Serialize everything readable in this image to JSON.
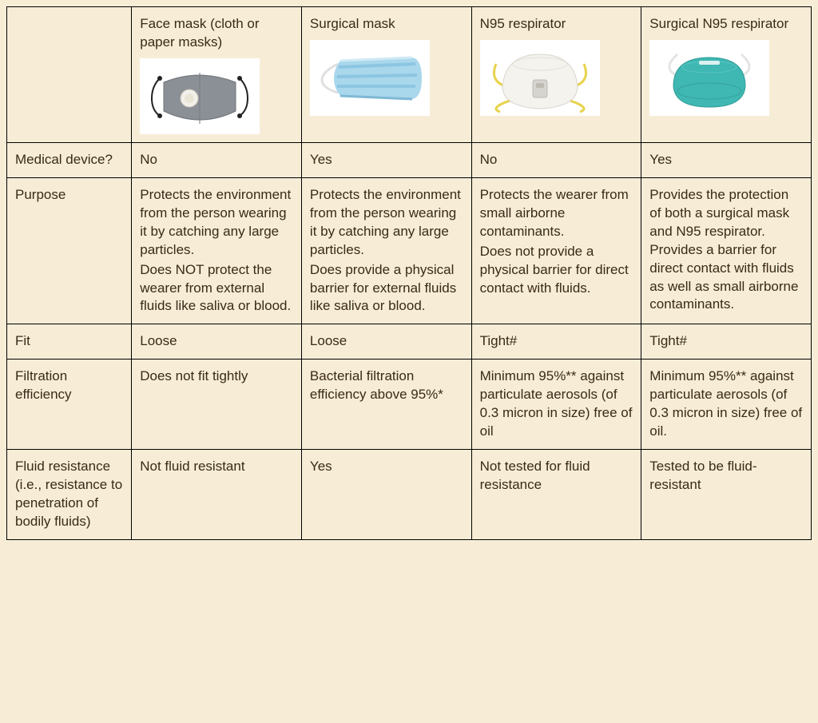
{
  "colors": {
    "page_bg": "#f7edd7",
    "border": "#000000",
    "text": "#3a2a17",
    "img_bg": "#ffffff"
  },
  "table": {
    "columns": [
      {
        "title": "Face mask (cloth or paper masks)",
        "icon": "face-mask"
      },
      {
        "title": "Surgical mask",
        "icon": "surgical-mask"
      },
      {
        "title": "N95 respirator",
        "icon": "n95"
      },
      {
        "title": "Surgical N95 respirator",
        "icon": "surgical-n95"
      }
    ],
    "rows": [
      {
        "label": "Medical device?",
        "cells": [
          "No",
          "Yes",
          "No",
          "Yes"
        ]
      },
      {
        "label": "Purpose",
        "cells": [
          "Protects the environment from the person wearing it by catching any large particles.\nDoes NOT protect the wearer from external fluids like saliva or blood.",
          "Protects the environment from the person wearing it by catching any large particles.\nDoes provide a physical barrier for external fluids like saliva or blood.",
          "Protects the wearer from small airborne contaminants.\nDoes not provide a physical barrier for direct contact with fluids.",
          "Provides the protection of both a surgical mask and N95 respirator. Provides a barrier for direct contact with fluids as well as small airborne contaminants."
        ]
      },
      {
        "label": "Fit",
        "cells": [
          "Loose",
          "Loose",
          "Tight#",
          "Tight#"
        ]
      },
      {
        "label": "Filtration efficiency",
        "cells": [
          "Does not fit tightly",
          "Bacterial filtration efficiency above 95%*",
          "Minimum 95%** against particulate aerosols (of 0.3 micron in size) free of oil",
          "Minimum 95%** against particulate aerosols (of 0.3 micron in size) free of oil."
        ]
      },
      {
        "label": "Fluid resistance (i.e., resistance to penetration of bodily fluids)",
        "cells": [
          "Not fluid resistant",
          "Yes",
          "Not tested for fluid resistance",
          "Tested to be fluid-resistant"
        ]
      }
    ]
  },
  "mask_styles": {
    "face-mask": {
      "body": "#8b8f96",
      "strap": "#222222",
      "valve": "#f2f0ea"
    },
    "surgical-mask": {
      "body": "#a9d7ec",
      "fold": "#8cc6e2",
      "strap": "#e8e8e8"
    },
    "n95": {
      "body": "#f5f3ee",
      "strap": "#e8d24a",
      "valve": "#d6d4cf"
    },
    "surgical-n95": {
      "body": "#3fb7b3",
      "strap": "#e8e8e8"
    }
  }
}
